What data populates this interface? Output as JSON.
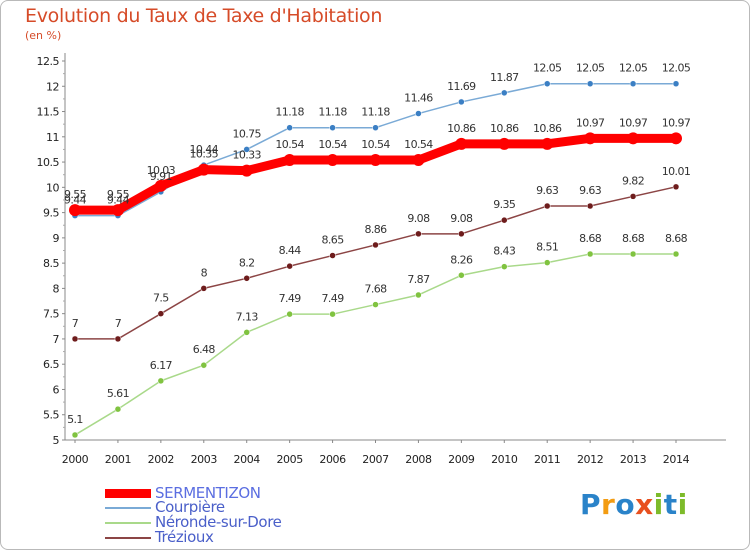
{
  "title": "Evolution du Taux de Taxe d'Habitation",
  "unit_label": "(en %)",
  "logo": {
    "text": "Proxiti",
    "letters": [
      "P",
      "r",
      "o",
      "x",
      "i",
      "t",
      "i"
    ],
    "letter_colors": [
      "#2a83c9",
      "#f39c12",
      "#2a83c9",
      "#e8501f",
      "#7dbb2a",
      "#2a83c9",
      "#7dbb2a"
    ]
  },
  "chart_data": {
    "type": "line",
    "x": [
      "2000",
      "2001",
      "2002",
      "2003",
      "2004",
      "2005",
      "2006",
      "2007",
      "2008",
      "2009",
      "2010",
      "2011",
      "2012",
      "2013",
      "2014"
    ],
    "ylim": [
      5,
      12.5
    ],
    "y_ticks": [
      "5",
      "5.5",
      "6",
      "6.5",
      "7",
      "7.5",
      "8",
      "8.5",
      "9",
      "9.5",
      "10",
      "10.5",
      "11",
      "11.5",
      "12",
      "12.5"
    ],
    "grid": false,
    "legend_position": "bottom-left",
    "series": [
      {
        "name": "SERMENTIZON",
        "color": "#ff0000",
        "point_color": "#ff0000",
        "values": [
          9.55,
          9.55,
          10.03,
          10.35,
          10.33,
          10.54,
          10.54,
          10.54,
          10.54,
          10.86,
          10.86,
          10.86,
          10.97,
          10.97,
          10.97
        ],
        "labels": [
          "9.55",
          "9.55",
          "10.03",
          "10.35",
          "10.33",
          "10.54",
          "10.54",
          "10.54",
          "10.54",
          "10.86",
          "10.86",
          "10.86",
          "10.97",
          "10.97",
          "10.97"
        ]
      },
      {
        "name": "Courpière",
        "color": "#7aaad6",
        "point_color": "#3b7fc4",
        "values": [
          9.44,
          9.44,
          9.91,
          10.44,
          10.75,
          11.18,
          11.18,
          11.18,
          11.46,
          11.69,
          11.87,
          12.05,
          12.05,
          12.05,
          12.05
        ],
        "labels": [
          "9.44",
          "9.44",
          "9.91",
          "10.44",
          "10.75",
          "11.18",
          "11.18",
          "11.18",
          "11.46",
          "11.69",
          "11.87",
          "12.05",
          "12.05",
          "12.05",
          "12.05"
        ]
      },
      {
        "name": "Néronde-sur-Dore",
        "color": "#a9d98a",
        "point_color": "#80c340",
        "values": [
          5.1,
          5.61,
          6.17,
          6.48,
          7.13,
          7.49,
          7.49,
          7.68,
          7.87,
          8.26,
          8.43,
          8.51,
          8.68,
          8.68,
          8.68
        ],
        "labels": [
          "5.1",
          "5.61",
          "6.17",
          "6.48",
          "7.13",
          "7.49",
          "7.49",
          "7.68",
          "7.87",
          "8.26",
          "8.43",
          "8.51",
          "8.68",
          "8.68",
          "8.68"
        ]
      },
      {
        "name": "Trézioux",
        "color": "#8c4545",
        "point_color": "#6e1c1c",
        "values": [
          7,
          7,
          7.5,
          8,
          8.2,
          8.44,
          8.65,
          8.86,
          9.08,
          9.08,
          9.35,
          9.63,
          9.63,
          9.82,
          10.01
        ],
        "labels": [
          "7",
          "7",
          "7.5",
          "8",
          "8.2",
          "8.44",
          "8.65",
          "8.86",
          "9.08",
          "9.08",
          "9.35",
          "9.63",
          "9.63",
          "9.82",
          "10.01"
        ]
      }
    ]
  }
}
